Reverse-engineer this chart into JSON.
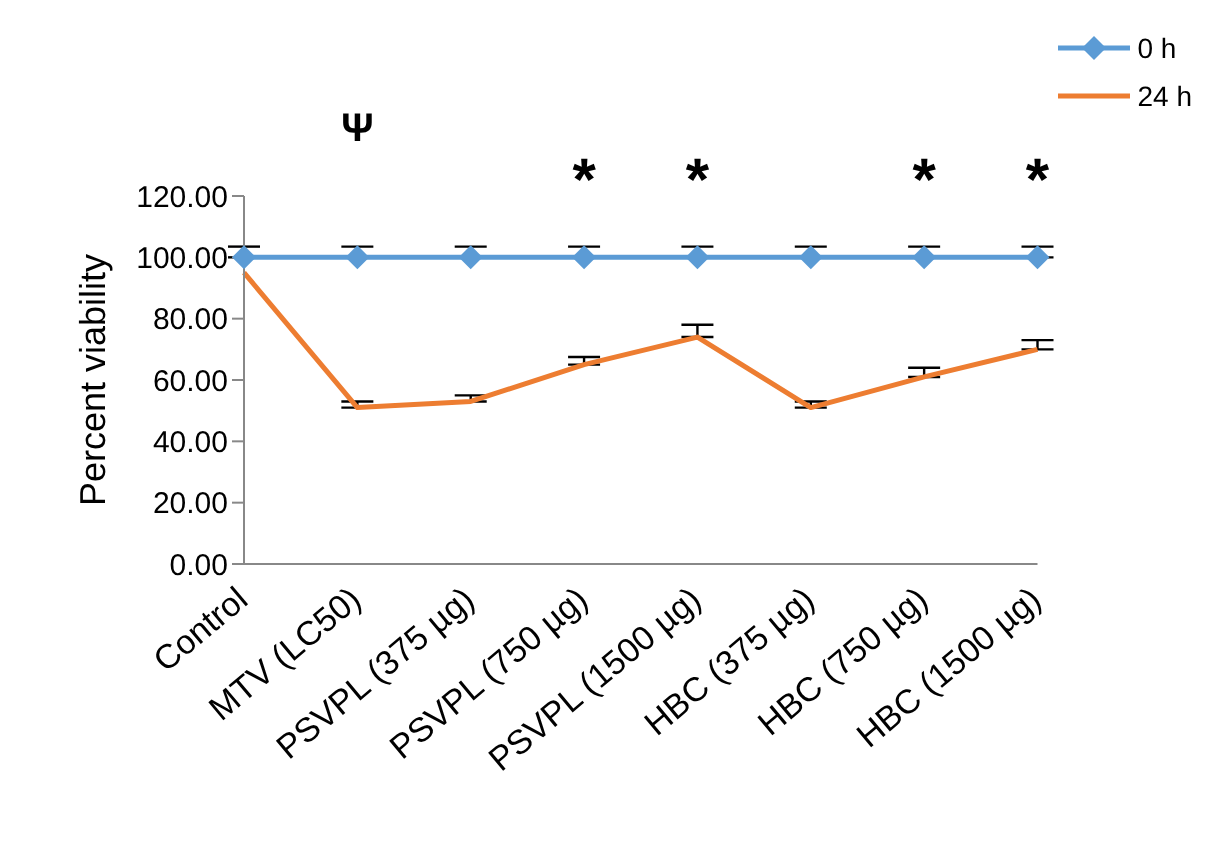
{
  "chart_data": {
    "type": "line",
    "ylabel": "Percent viability",
    "categories": [
      "Control",
      "MTV (LC50)",
      "PSVPL (375 µg)",
      "PSVPL (750 µg)",
      "PSVPL (1500 µg)",
      "HBC (375 µg)",
      "HBC (750 µg)",
      "HBC (1500 µg)"
    ],
    "series": [
      {
        "name": "0 h",
        "color": "#5b9bd5",
        "marker": "diamond",
        "values": [
          100,
          100,
          100,
          100,
          100,
          100,
          100,
          100
        ],
        "errors": [
          [
            100,
            103.5
          ],
          [
            100,
            103.5
          ],
          [
            100,
            103.5
          ],
          [
            100,
            103.5
          ],
          [
            100,
            103.5
          ],
          [
            100,
            103.5
          ],
          [
            100,
            103.5
          ],
          [
            100,
            103.5
          ]
        ]
      },
      {
        "name": "24 h",
        "color": "#ed7d31",
        "marker": "none",
        "values": [
          95,
          51,
          53,
          65,
          74,
          51,
          61,
          70
        ],
        "errors": [
          null,
          [
            51,
            53
          ],
          [
            53,
            55
          ],
          [
            65,
            67.5
          ],
          [
            74,
            78
          ],
          [
            51,
            53
          ],
          [
            61,
            64
          ],
          [
            70,
            73
          ]
        ]
      }
    ],
    "ylim": [
      0,
      120
    ],
    "yticks": [
      {
        "value": 0,
        "label": "0.00"
      },
      {
        "value": 20,
        "label": "20.00"
      },
      {
        "value": 40,
        "label": "40.00"
      },
      {
        "value": 60,
        "label": "60.00"
      },
      {
        "value": 80,
        "label": "80.00"
      },
      {
        "value": 100,
        "label": "100.00"
      },
      {
        "value": 120,
        "label": "120.00"
      }
    ],
    "grid": false,
    "legend": "top right",
    "annotations": [
      "Ψ",
      "*",
      "*",
      "*",
      "*"
    ]
  }
}
